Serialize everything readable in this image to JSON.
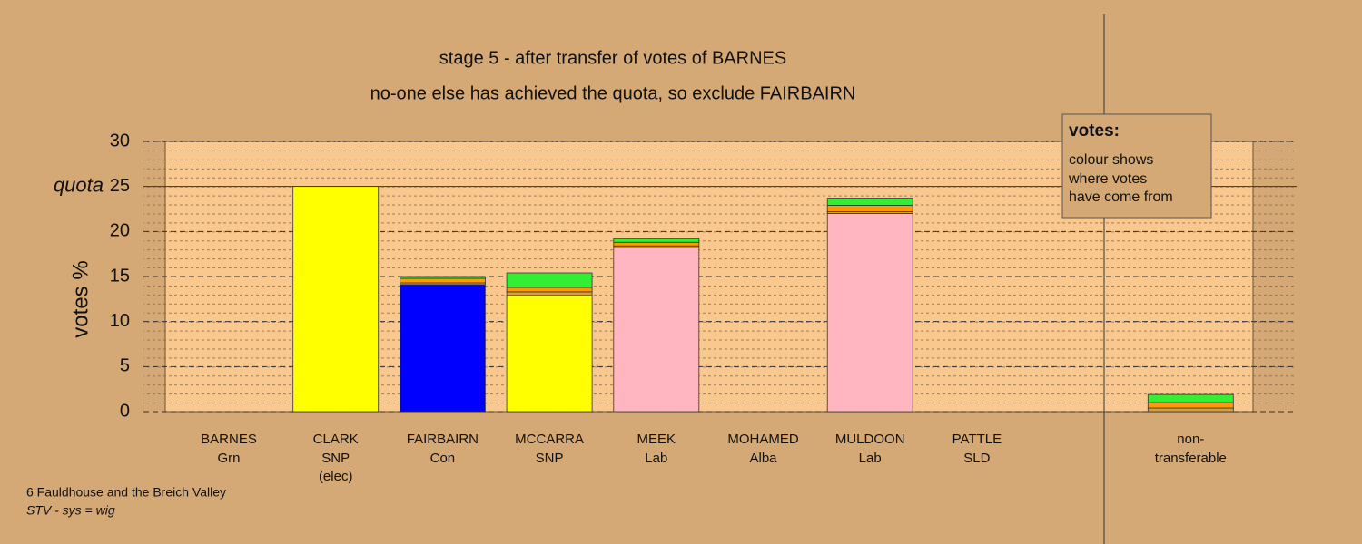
{
  "chart_data": {
    "type": "bar",
    "stacked": true,
    "title": "stage 5 - after transfer of votes of BARNES",
    "subtitle": "no-one else has achieved the quota, so exclude FAIRBAIRN",
    "y_label": "votes %",
    "categories": [
      "BARNES",
      "CLARK",
      "FAIRBAIRN",
      "MCCARRA",
      "MEEK",
      "MOHAMED",
      "MULDOON",
      "PATTLE",
      "non-"
    ],
    "parties": [
      "Grn",
      "SNP",
      "Con",
      "SNP",
      "Lab",
      "Alba",
      "Lab",
      "SLD",
      "transferable"
    ],
    "notes": [
      null,
      "(elec)",
      null,
      null,
      null,
      null,
      null,
      null,
      null
    ],
    "series": [
      {
        "color": "#ffff00",
        "values": [
          0,
          25,
          0,
          12.9,
          0,
          0,
          0,
          0,
          0
        ]
      },
      {
        "color": "#0000ff",
        "values": [
          0,
          0,
          14.1,
          0,
          0,
          0,
          0,
          0,
          0
        ]
      },
      {
        "color": "#ffb6c1",
        "values": [
          0,
          0,
          0,
          0,
          18.2,
          0,
          22,
          0,
          0
        ]
      },
      {
        "color": "#d9a03a",
        "values": [
          0,
          0,
          0.2,
          0.4,
          0.2,
          0,
          0.2,
          0,
          0.4
        ]
      },
      {
        "color": "#ff9a00",
        "values": [
          0,
          0,
          0.5,
          0.5,
          0.4,
          0,
          0.7,
          0,
          0.6
        ]
      },
      {
        "color": "#33ee33",
        "values": [
          0,
          0,
          0.2,
          1.6,
          0.4,
          0,
          0.8,
          0,
          0.9
        ]
      }
    ],
    "ylim": [
      0,
      30
    ],
    "yticks": [
      0,
      5,
      10,
      15,
      20,
      25,
      30
    ],
    "grid": true,
    "quota": {
      "value": 25,
      "label": "quota"
    },
    "legend": {
      "title": "votes:",
      "lines": [
        "colour shows",
        "where votes",
        "have come from"
      ]
    },
    "footer": [
      "6 Fauldhouse and the Breich Valley",
      "STV - sys = wig"
    ]
  }
}
